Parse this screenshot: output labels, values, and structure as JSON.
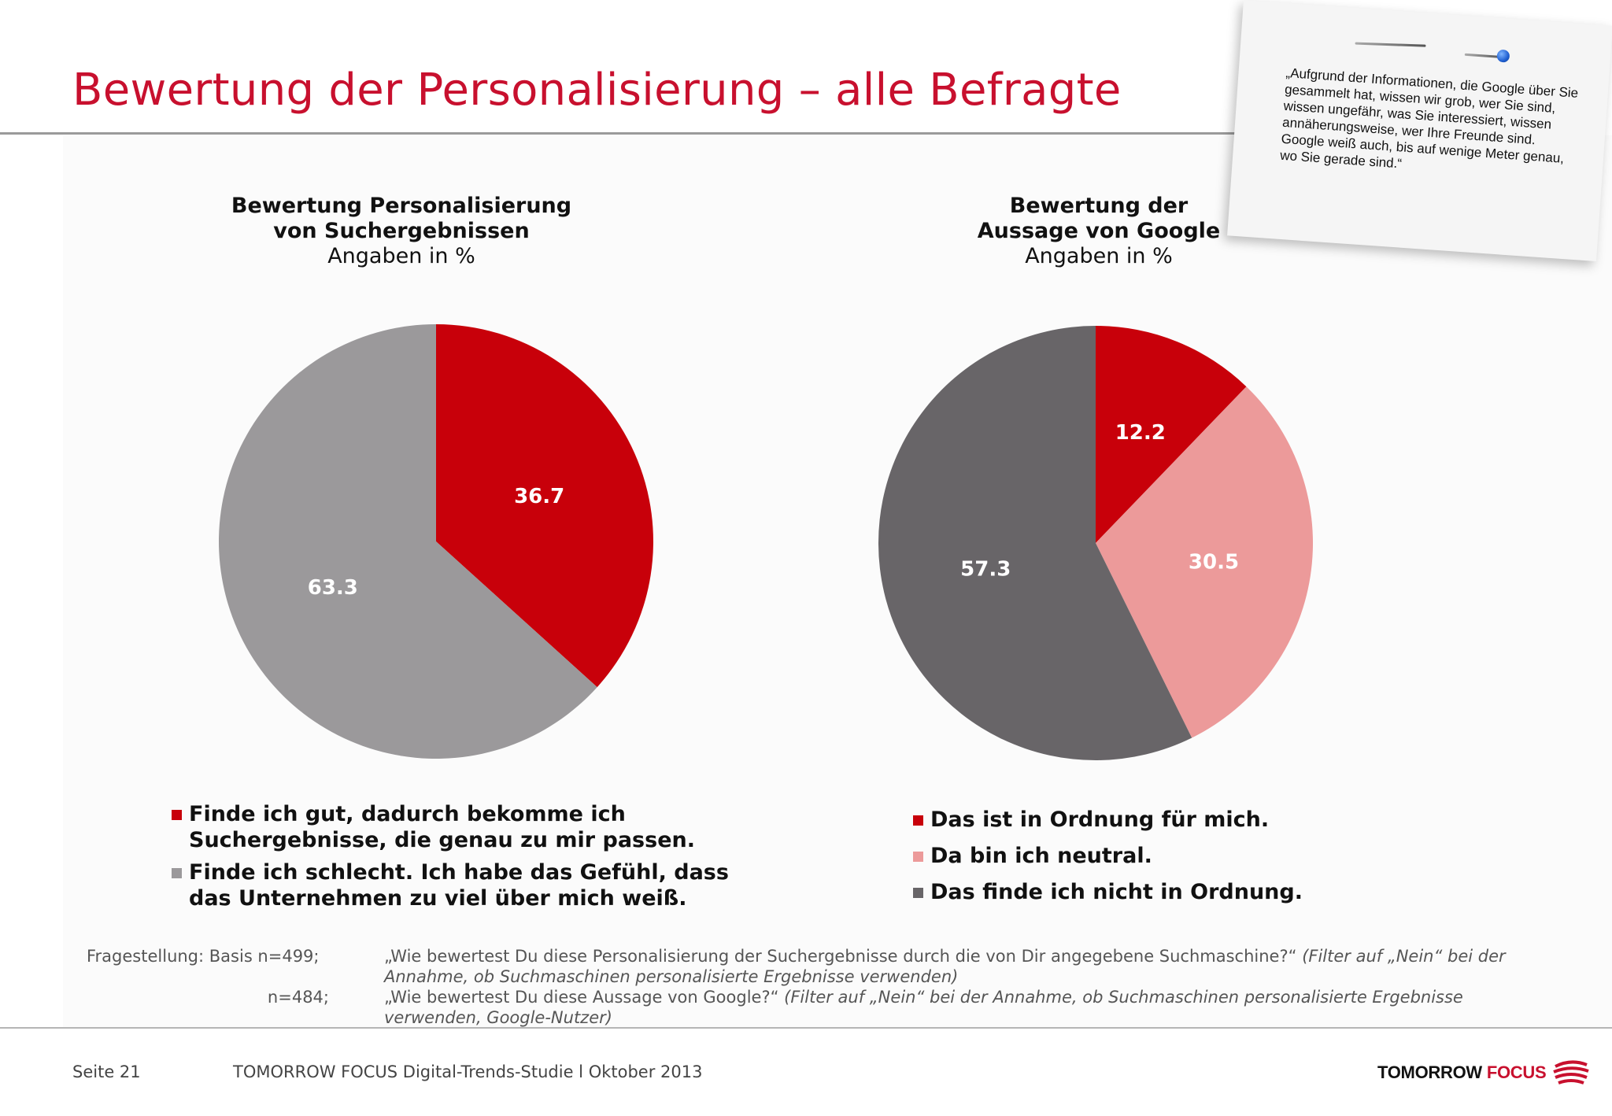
{
  "header": {
    "title": "Bewertung der Personalisierung – alle Befragte"
  },
  "quote": {
    "text": "„Aufgrund der Informationen, die Google über Sie gesammelt hat, wissen wir grob, wer Sie sind, wissen ungefähr, was Sie interessiert, wissen annäherungsweise, wer Ihre Freunde sind. Google weiß auch, bis auf wenige Meter genau, wo Sie gerade sind.“"
  },
  "colors": {
    "brand_red": "#c8102e",
    "slice_red": "#c8000a",
    "slice_lightgray": "#9b999b",
    "slice_pink": "#ec9a9a",
    "slice_darkgray": "#686568"
  },
  "chart_data": [
    {
      "type": "pie",
      "title": "Bewertung Personalisierung von Suchergebnissen",
      "title_line1": "Bewertung Personalisierung",
      "title_line2": "von Suchergebnissen",
      "subtitle": "Angaben in %",
      "categories": [
        "Finde ich gut, dadurch bekomme ich Suchergebnisse, die genau zu mir passen.",
        "Finde ich schlecht. Ich habe das Gefühl, dass das Unternehmen zu viel über mich weiß."
      ],
      "values": [
        36.7,
        63.3
      ],
      "labels": [
        "36.7",
        "63.3"
      ],
      "colors": [
        "#c8000a",
        "#9b999b"
      ],
      "legend_position": "bottom"
    },
    {
      "type": "pie",
      "title": "Bewertung der Aussage von Google",
      "title_line1": "Bewertung der",
      "title_line2": "Aussage von Google",
      "subtitle": "Angaben in %",
      "categories": [
        "Das ist in Ordnung für mich.",
        "Da bin ich neutral.",
        "Das finde ich nicht in Ordnung."
      ],
      "values": [
        12.2,
        30.5,
        57.3
      ],
      "labels": [
        "12.2",
        "30.5",
        "57.3"
      ],
      "colors": [
        "#c8000a",
        "#ec9a9a",
        "#686568"
      ],
      "legend_position": "bottom"
    }
  ],
  "source": {
    "row1_label": "Fragestellung: Basis n=499;",
    "row1_text": "„Wie bewertest Du diese Personalisierung der Suchergebnisse durch die von Dir angegebene Suchmaschine?“",
    "row1_italic": "(Filter auf „Nein“ bei der Annahme, ob Suchmaschinen personalisierte Ergebnisse verwenden)",
    "row2_label": "n=484;",
    "row2_text": "„Wie bewertest Du diese Aussage von Google?“",
    "row2_italic": "(Filter auf „Nein“ bei der Annahme, ob Suchmaschinen personalisierte Ergebnisse verwenden, Google-Nutzer)"
  },
  "footer": {
    "page": "Seite 21",
    "study": "TOMORROW FOCUS Digital-Trends-Studie l Oktober 2013",
    "logo_word1": "TOMORROW",
    "logo_word2": "FOCUS"
  }
}
